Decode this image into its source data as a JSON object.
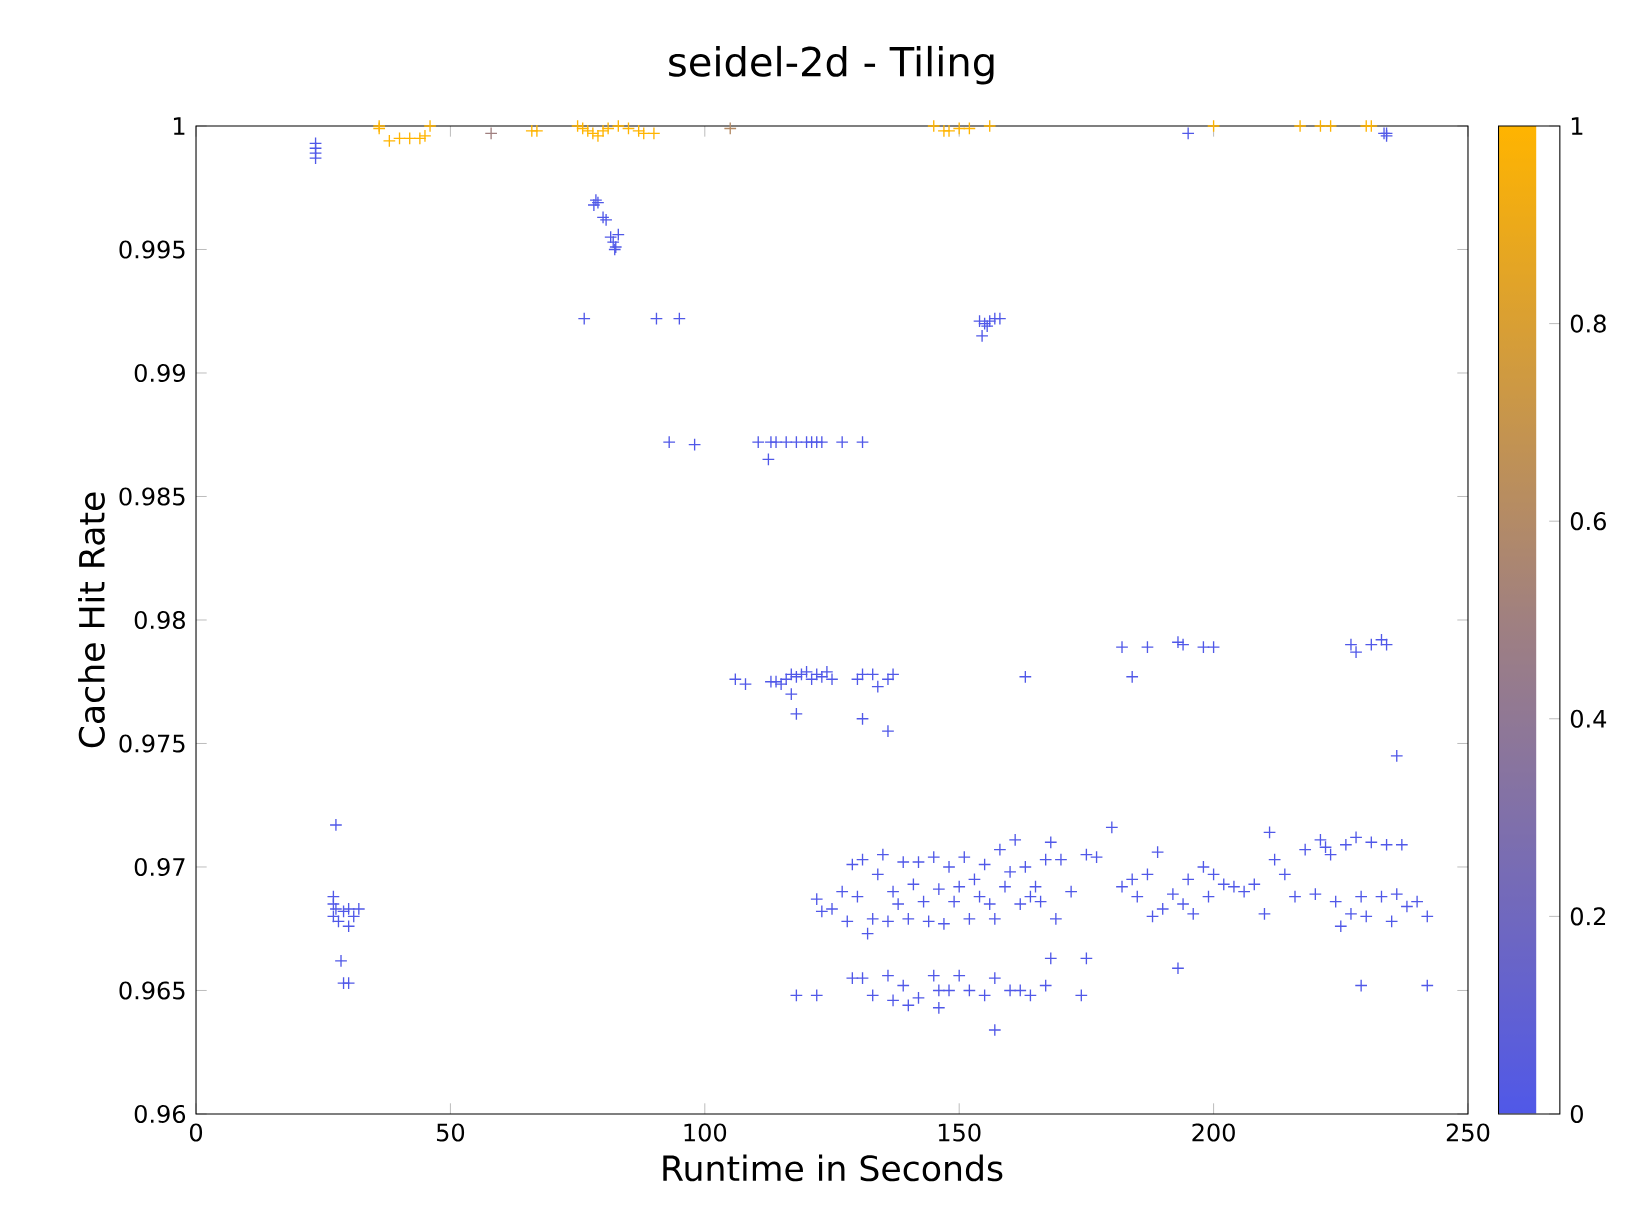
{
  "chart_data": {
    "type": "scatter",
    "title": "seidel-2d - Tiling",
    "xlabel": "Runtime in Seconds",
    "ylabel": "Cache Hit Rate",
    "marker": "cross",
    "xlim": [
      0,
      250
    ],
    "ylim": [
      0.96,
      1
    ],
    "xticks": [
      0,
      50,
      100,
      150,
      200,
      250
    ],
    "yticks": [
      0.96,
      0.965,
      0.97,
      0.975,
      0.98,
      0.985,
      0.99,
      0.995,
      1
    ],
    "clim": [
      0,
      1
    ],
    "cticks": [
      0,
      0.2,
      0.4,
      0.6,
      0.8,
      1
    ],
    "x": [
      36,
      36,
      38,
      40,
      42,
      44,
      45,
      46,
      58,
      66,
      67,
      75,
      76,
      77,
      78,
      79,
      80,
      81,
      83,
      85,
      87,
      88,
      90,
      105,
      145,
      147,
      148,
      150,
      152,
      156,
      200,
      217,
      221,
      223,
      230,
      231,
      23.5,
      23.5,
      23.5,
      23.5,
      195,
      234,
      234,
      233.5,
      78.6,
      78.2,
      79,
      80,
      80.6,
      81.5,
      82,
      82.5,
      83,
      82.3,
      76.3,
      90.5,
      95,
      154,
      155,
      156,
      154.5,
      157,
      158,
      155.5,
      93,
      98,
      110.5,
      113,
      114,
      116,
      118,
      120,
      121,
      122,
      123,
      127,
      131,
      112.5,
      106,
      108,
      113,
      114,
      115,
      116,
      117,
      118,
      119,
      120,
      121,
      122,
      123,
      124,
      125,
      130,
      131,
      133,
      134,
      136,
      137,
      117,
      118,
      131,
      136,
      163,
      182,
      184,
      187,
      193,
      194,
      198,
      200,
      227,
      228,
      231,
      233,
      234,
      236,
      27.5,
      27,
      27,
      27,
      27.5,
      28,
      29,
      30,
      31,
      32,
      30,
      28.5,
      29,
      30,
      118,
      122,
      129,
      131,
      133,
      136,
      137,
      139,
      140,
      142,
      145,
      146,
      148,
      150,
      152,
      155,
      157,
      160,
      162,
      164,
      167,
      168,
      175,
      174,
      157,
      193,
      229,
      242,
      146,
      122,
      123,
      125,
      127,
      128,
      129,
      130,
      131,
      132,
      133,
      134,
      135,
      136,
      137,
      138,
      139,
      140,
      141,
      142,
      143,
      144,
      145,
      146,
      147,
      148,
      149,
      150,
      151,
      152,
      153,
      154,
      155,
      156,
      157,
      158,
      159,
      160,
      161,
      162,
      163,
      164,
      165,
      166,
      167,
      168,
      169,
      170,
      172,
      175,
      177,
      180,
      182,
      184,
      185,
      187,
      188,
      189,
      190,
      192,
      194,
      195,
      196,
      198,
      199,
      200,
      202,
      204,
      206,
      208,
      210,
      211,
      212,
      214,
      216,
      218,
      220,
      221,
      222,
      223,
      224,
      225,
      226,
      227,
      228,
      229,
      230,
      231,
      233,
      234,
      235,
      236,
      237,
      238,
      240,
      242
    ],
    "values": [
      1.0,
      0.9999,
      0.9994,
      0.9995,
      0.9995,
      0.9995,
      0.9996,
      1.0,
      0.9997,
      0.9998,
      0.9998,
      1.0,
      0.9999,
      0.9998,
      0.9997,
      0.9996,
      0.9998,
      0.9999,
      1.0,
      0.9999,
      0.9998,
      0.9997,
      0.9997,
      0.9999,
      1.0,
      0.9998,
      0.9998,
      0.9999,
      0.9999,
      1.0,
      1.0,
      1.0,
      1.0,
      1.0,
      1.0,
      1.0,
      0.9993,
      0.9991,
      0.9989,
      0.9987,
      0.9997,
      0.9997,
      0.9996,
      0.9997,
      0.997,
      0.9968,
      0.9969,
      0.9963,
      0.9962,
      0.9955,
      0.9953,
      0.9951,
      0.9956,
      0.995,
      0.9922,
      0.9922,
      0.9922,
      0.9921,
      0.992,
      0.9921,
      0.9915,
      0.9922,
      0.9922,
      0.9919,
      0.9872,
      0.9871,
      0.9872,
      0.9872,
      0.9872,
      0.9872,
      0.9872,
      0.9872,
      0.9872,
      0.9872,
      0.9872,
      0.9872,
      0.9872,
      0.9865,
      0.9776,
      0.9774,
      0.9775,
      0.9775,
      0.9774,
      0.9776,
      0.9778,
      0.9777,
      0.9778,
      0.9779,
      0.9776,
      0.9778,
      0.9777,
      0.9779,
      0.9776,
      0.9776,
      0.9778,
      0.9778,
      0.9773,
      0.9776,
      0.9778,
      0.977,
      0.9762,
      0.976,
      0.9755,
      0.9777,
      0.9789,
      0.9777,
      0.9789,
      0.9791,
      0.979,
      0.9789,
      0.9789,
      0.979,
      0.9787,
      0.979,
      0.9792,
      0.979,
      0.9745,
      0.9717,
      0.9688,
      0.9685,
      0.968,
      0.9683,
      0.9678,
      0.9682,
      0.9683,
      0.968,
      0.9683,
      0.9676,
      0.9662,
      0.9653,
      0.9653,
      0.9648,
      0.9648,
      0.9655,
      0.9655,
      0.9648,
      0.9656,
      0.9646,
      0.9652,
      0.9644,
      0.9647,
      0.9656,
      0.965,
      0.965,
      0.9656,
      0.965,
      0.9648,
      0.9655,
      0.965,
      0.965,
      0.9648,
      0.9652,
      0.9663,
      0.9663,
      0.9648,
      0.9634,
      0.9659,
      0.9652,
      0.9652,
      0.9643,
      0.9687,
      0.9682,
      0.9683,
      0.969,
      0.9678,
      0.9701,
      0.9688,
      0.9703,
      0.9673,
      0.9679,
      0.9697,
      0.9705,
      0.9678,
      0.969,
      0.9685,
      0.9702,
      0.9679,
      0.9693,
      0.9702,
      0.9686,
      0.9678,
      0.9704,
      0.9691,
      0.9677,
      0.97,
      0.9686,
      0.9692,
      0.9704,
      0.9679,
      0.9695,
      0.9688,
      0.9701,
      0.9685,
      0.9679,
      0.9707,
      0.9692,
      0.9698,
      0.9711,
      0.9685,
      0.97,
      0.9688,
      0.9692,
      0.9686,
      0.9703,
      0.971,
      0.9679,
      0.9703,
      0.969,
      0.9705,
      0.9704,
      0.9716,
      0.9692,
      0.9695,
      0.9688,
      0.9697,
      0.968,
      0.9706,
      0.9683,
      0.9689,
      0.9685,
      0.9695,
      0.9681,
      0.97,
      0.9688,
      0.9697,
      0.9693,
      0.9692,
      0.969,
      0.9693,
      0.9681,
      0.9714,
      0.9703,
      0.9697,
      0.9688,
      0.9707,
      0.9689,
      0.9711,
      0.9708,
      0.9705,
      0.9686,
      0.9676,
      0.9709,
      0.9681,
      0.9712,
      0.9688,
      0.968,
      0.971,
      0.9688,
      0.9709,
      0.9678,
      0.9689,
      0.9709,
      0.9684,
      0.9686,
      0.968
    ],
    "cvalues": [
      1,
      1,
      1,
      1,
      1,
      1,
      1,
      1,
      0.5,
      1,
      1,
      1,
      1,
      1,
      1,
      1,
      1,
      1,
      1,
      1,
      1,
      1,
      1,
      0.6,
      1,
      1,
      1,
      1,
      1,
      1,
      1,
      1,
      1,
      1,
      1,
      1,
      0,
      0,
      0,
      0,
      0,
      0,
      0,
      0,
      0,
      0,
      0,
      0,
      0,
      0,
      0,
      0,
      0,
      0,
      0,
      0,
      0,
      0,
      0,
      0,
      0,
      0,
      0,
      0,
      0,
      0,
      0,
      0,
      0,
      0,
      0,
      0,
      0,
      0,
      0,
      0,
      0,
      0,
      0,
      0,
      0,
      0,
      0,
      0,
      0,
      0,
      0,
      0,
      0,
      0,
      0,
      0,
      0,
      0,
      0,
      0,
      0,
      0,
      0,
      0,
      0,
      0,
      0,
      0,
      0,
      0,
      0,
      0,
      0,
      0,
      0,
      0,
      0,
      0,
      0,
      0,
      0,
      0,
      0,
      0,
      0,
      0,
      0,
      0,
      0,
      0,
      0,
      0,
      0,
      0,
      0,
      0,
      0,
      0,
      0,
      0,
      0,
      0,
      0,
      0,
      0,
      0,
      0,
      0,
      0,
      0,
      0,
      0,
      0,
      0,
      0,
      0,
      0,
      0,
      0,
      0,
      0,
      0,
      0,
      0,
      0,
      0,
      0,
      0,
      0,
      0,
      0,
      0,
      0,
      0,
      0,
      0,
      0,
      0,
      0,
      0,
      0,
      0,
      0,
      0,
      0,
      0,
      0,
      0,
      0,
      0,
      0,
      0,
      0,
      0,
      0,
      0,
      0,
      0,
      0,
      0,
      0,
      0,
      0,
      0,
      0,
      0,
      0,
      0,
      0,
      0,
      0,
      0,
      0,
      0,
      0,
      0,
      0,
      0,
      0,
      0,
      0,
      0,
      0,
      0,
      0,
      0,
      0,
      0,
      0,
      0,
      0,
      0,
      0,
      0,
      0,
      0,
      0,
      0,
      0,
      0,
      0,
      0,
      0,
      0,
      0,
      0,
      0,
      0,
      0,
      0,
      0,
      0,
      0,
      0,
      0,
      0,
      0,
      0,
      0
    ]
  }
}
